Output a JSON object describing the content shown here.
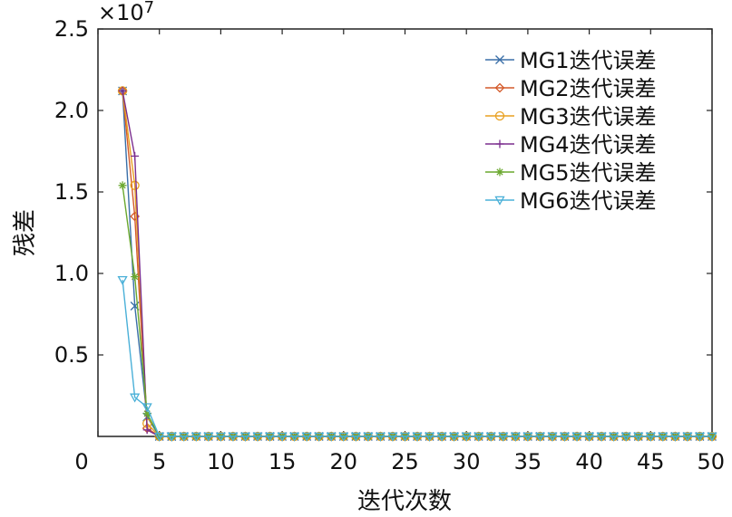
{
  "chart_data": {
    "type": "line",
    "title": "",
    "xlabel": "迭代次数",
    "ylabel": "残差",
    "y_multiplier": "×10",
    "y_multiplier_exp": "7",
    "xlim": [
      0,
      50
    ],
    "ylim": [
      0,
      2.5
    ],
    "x_ticks": [
      "0",
      "5",
      "10",
      "15",
      "20",
      "25",
      "30",
      "35",
      "40",
      "45",
      "50"
    ],
    "y_ticks": [
      "0.5",
      "1.0",
      "1.5",
      "2.0",
      "2.5"
    ],
    "legend_position": "top-right",
    "grid": false,
    "series": [
      {
        "name": "MG1迭代误差",
        "color": "#3a6fa8",
        "marker": "x",
        "x": [
          2,
          3,
          4,
          5,
          6
        ],
        "y": [
          2.12,
          0.8,
          0.12,
          0.0,
          0.0
        ]
      },
      {
        "name": "MG2迭代误差",
        "color": "#d45a2a",
        "marker": "diamond",
        "x": [
          2,
          3,
          4,
          5,
          6
        ],
        "y": [
          2.12,
          1.35,
          0.05,
          0.0,
          0.0
        ]
      },
      {
        "name": "MG3迭代误差",
        "color": "#e8a020",
        "marker": "circle",
        "x": [
          2,
          3,
          4,
          5,
          6
        ],
        "y": [
          2.12,
          1.54,
          0.08,
          0.0,
          0.0
        ]
      },
      {
        "name": "MG4迭代误差",
        "color": "#7b2e8e",
        "marker": "plus",
        "x": [
          2,
          3,
          4,
          5,
          6
        ],
        "y": [
          2.12,
          1.72,
          0.04,
          0.0,
          0.0
        ]
      },
      {
        "name": "MG5迭代误差",
        "color": "#6aa82e",
        "marker": "asterisk",
        "x": [
          2,
          3,
          4,
          5,
          6
        ],
        "y": [
          1.54,
          0.98,
          0.14,
          0.0,
          0.0
        ]
      },
      {
        "name": "MG6迭代误差",
        "color": "#4ab0d8",
        "marker": "triangle-down",
        "x": [
          2,
          3,
          4,
          5,
          6
        ],
        "y": [
          0.96,
          0.24,
          0.18,
          0.0,
          0.0
        ]
      }
    ],
    "tail": {
      "x_from": 5,
      "x_to": 50,
      "y": 0.0
    }
  }
}
